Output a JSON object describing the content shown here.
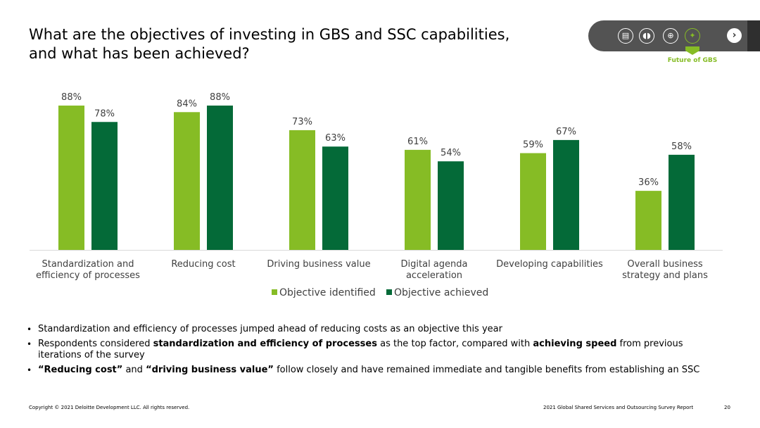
{
  "title": {
    "line1": "What are the objectives of investing in GBS and SSC capabilities,",
    "line2": "and what has been achieved?"
  },
  "nav": {
    "icons": [
      "clipboard-icon",
      "footprints-icon",
      "globe-icon",
      "telescope-icon"
    ],
    "active_label": "Future of GBS",
    "next_icon": "chevron-right-icon"
  },
  "colors": {
    "identified": "#86bc25",
    "achieved": "#046a38",
    "axis": "#d9d9d9",
    "text": "#404040"
  },
  "chart_data": {
    "type": "bar",
    "categories": [
      [
        "Standardization and",
        "efficiency of processes"
      ],
      [
        "Reducing cost"
      ],
      [
        "Driving business value"
      ],
      [
        "Digital agenda",
        "acceleration"
      ],
      [
        "Developing capabilities"
      ],
      [
        "Overall business",
        "strategy and plans"
      ]
    ],
    "series": [
      {
        "name": "Objective identified",
        "values": [
          88,
          84,
          73,
          61,
          59,
          36
        ],
        "labels": [
          "88%",
          "84%",
          "73%",
          "61%",
          "59%",
          "36%"
        ]
      },
      {
        "name": "Objective achieved",
        "values": [
          78,
          88,
          63,
          54,
          67,
          58
        ],
        "labels": [
          "78%",
          "88%",
          "63%",
          "54%",
          "67%",
          "58%"
        ]
      }
    ],
    "ylim": [
      0,
      100
    ],
    "legend_position": "bottom",
    "grid": false
  },
  "bullets": [
    {
      "parts": [
        {
          "text": "Standardization and efficiency of processes jumped ahead of reducing costs as an objective this year",
          "bold": false
        }
      ]
    },
    {
      "parts": [
        {
          "text": "Respondents considered ",
          "bold": false
        },
        {
          "text": "standardization and efficiency of processes",
          "bold": true
        },
        {
          "text": " as the top factor, compared with ",
          "bold": false
        },
        {
          "text": "achieving speed",
          "bold": true
        },
        {
          "text": " from previous iterations of the survey",
          "bold": false
        }
      ]
    },
    {
      "parts": [
        {
          "text": "“Reducing cost”",
          "bold": true
        },
        {
          "text": " and ",
          "bold": false
        },
        {
          "text": "“driving business value”",
          "bold": true
        },
        {
          "text": " follow closely and have remained immediate and tangible benefits from establishing an SSC",
          "bold": false
        }
      ]
    }
  ],
  "footer": {
    "copyright": "Copyright © 2021 Deloitte Development LLC. All rights reserved.",
    "report": "2021 Global Shared Services and Outsourcing Survey Report",
    "page": "20"
  }
}
